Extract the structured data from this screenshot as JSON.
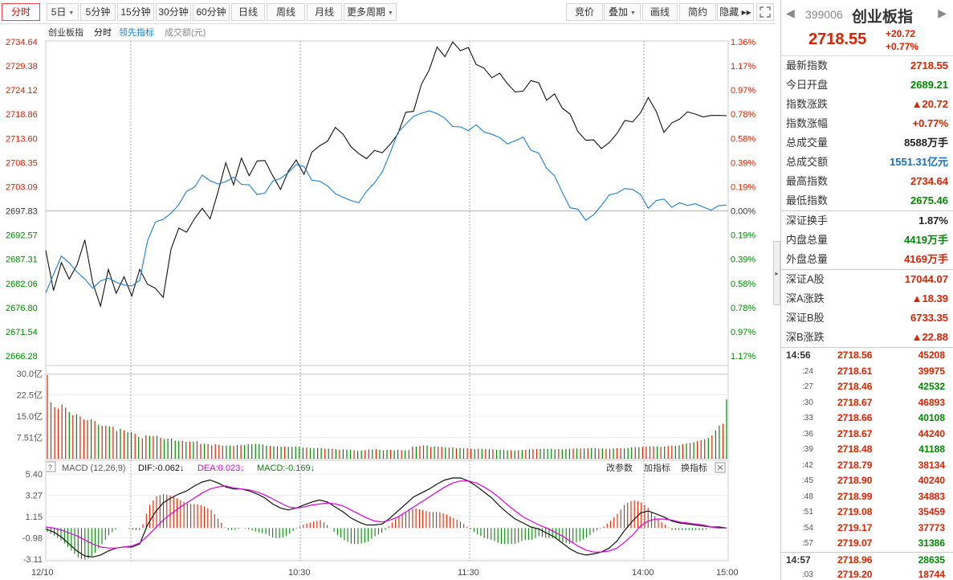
{
  "toolbar": {
    "left": [
      {
        "label": "分时",
        "active": true
      },
      {
        "label": "5日",
        "dropdown": true
      },
      {
        "label": "5分钟"
      },
      {
        "label": "15分钟"
      },
      {
        "label": "30分钟"
      },
      {
        "label": "60分钟"
      },
      {
        "label": "日线"
      },
      {
        "label": "周线"
      },
      {
        "label": "月线"
      },
      {
        "label": "更多周期",
        "dropdown": true
      }
    ],
    "right": [
      {
        "label": "竞价"
      },
      {
        "label": "叠加",
        "dropdown": true
      },
      {
        "label": "画线"
      },
      {
        "label": "简约"
      },
      {
        "label": "隐藏 ▸▸"
      }
    ],
    "fullscreen_icon": "fullscreen-icon"
  },
  "chart_legend": {
    "name": "创业板指",
    "mode": "分时",
    "leading_label": "领先指标",
    "volume_label": "成交额(元)"
  },
  "macd_legend": {
    "title": "MACD (12,26,9)",
    "dif": "DIF:-0.062↓",
    "dea": "DEA:0.023↓",
    "macd": "MACD:-0.169↓",
    "actions": [
      "改参数",
      "加指标",
      "换指标"
    ]
  },
  "colors": {
    "up": "#dd2200",
    "down": "#008800",
    "price_line": "#111111",
    "leading_line": "#1a7fd0",
    "dif_line": "#111111",
    "dea_line": "#dd00dd",
    "grid": "#dddddd"
  },
  "right_panel": {
    "code": "399006",
    "name": "创业板指",
    "price": "2718.55",
    "change": "+20.72",
    "change_pct": "+0.77%",
    "stats": [
      {
        "label": "最新指数",
        "value": "2718.55",
        "color": "red"
      },
      {
        "label": "今日开盘",
        "value": "2689.21",
        "color": "green"
      },
      {
        "label": "指数涨跌",
        "value": "▲20.72",
        "color": "red"
      },
      {
        "label": "指数涨幅",
        "value": "+0.77%",
        "color": "red"
      },
      {
        "label": "总成交量",
        "value": "8588万手",
        "color": "dark"
      },
      {
        "label": "总成交额",
        "value": "1551.31亿元",
        "color": "blue"
      },
      {
        "label": "最高指数",
        "value": "2734.64",
        "color": "red"
      },
      {
        "label": "最低指数",
        "value": "2675.46",
        "color": "green"
      }
    ],
    "stats2": [
      {
        "label": "深证换手",
        "value": "1.87%",
        "color": "dark"
      },
      {
        "label": "内盘总量",
        "value": "4419万手",
        "color": "green"
      },
      {
        "label": "外盘总量",
        "value": "4169万手",
        "color": "red"
      }
    ],
    "stats3": [
      {
        "label": "深证A股",
        "value": "17044.07",
        "color": "red"
      },
      {
        "label": "深A涨跌",
        "value": "▲18.39",
        "color": "red"
      },
      {
        "label": "深证B股",
        "value": "6733.35",
        "color": "red"
      },
      {
        "label": "深B涨跌",
        "value": "▲22.88",
        "color": "red"
      }
    ],
    "ticks": [
      {
        "time": "14:56",
        "sub": false,
        "price": "2718.56",
        "vol": "45208",
        "dir": "red"
      },
      {
        "time": ":24",
        "sub": true,
        "price": "2718.61",
        "vol": "39975",
        "dir": "red"
      },
      {
        "time": ":27",
        "sub": true,
        "price": "2718.46",
        "vol": "42532",
        "dir": "green"
      },
      {
        "time": ":30",
        "sub": true,
        "price": "2718.67",
        "vol": "46893",
        "dir": "red"
      },
      {
        "time": ":33",
        "sub": true,
        "price": "2718.66",
        "vol": "40108",
        "dir": "green"
      },
      {
        "time": ":36",
        "sub": true,
        "price": "2718.67",
        "vol": "44240",
        "dir": "red"
      },
      {
        "time": ":39",
        "sub": true,
        "price": "2718.48",
        "vol": "41188",
        "dir": "green"
      },
      {
        "time": ":42",
        "sub": true,
        "price": "2718.79",
        "vol": "38134",
        "dir": "red"
      },
      {
        "time": ":45",
        "sub": true,
        "price": "2718.90",
        "vol": "40240",
        "dir": "red"
      },
      {
        "time": ":48",
        "sub": true,
        "price": "2718.99",
        "vol": "34883",
        "dir": "red"
      },
      {
        "time": ":51",
        "sub": true,
        "price": "2719.08",
        "vol": "35459",
        "dir": "red"
      },
      {
        "time": ":54",
        "sub": true,
        "price": "2719.17",
        "vol": "37773",
        "dir": "red"
      },
      {
        "time": ":57",
        "sub": true,
        "price": "2719.07",
        "vol": "31386",
        "dir": "green"
      },
      {
        "time": "14:57",
        "sub": false,
        "price": "2718.96",
        "vol": "28635",
        "dir": "green"
      },
      {
        "time": ":03",
        "sub": true,
        "price": "2719.20",
        "vol": "18744",
        "dir": "red"
      }
    ]
  },
  "chart_data": [
    {
      "type": "line",
      "title": "创业板指 分时",
      "prev_close": 2697.83,
      "y_ticks": [
        "2734.64",
        "2729.38",
        "2724.12",
        "2718.86",
        "2713.60",
        "2708.35",
        "2703.09",
        "2697.83",
        "2692.57",
        "2687.31",
        "2682.06",
        "2676.80",
        "2671.54",
        "2666.28"
      ],
      "pct_ticks": [
        "1.36%",
        "1.17%",
        "0.97%",
        "0.78%",
        "0.58%",
        "0.39%",
        "0.19%",
        "0.00%",
        "0.19%",
        "0.39%",
        "0.58%",
        "0.78%",
        "0.97%",
        "1.17%"
      ],
      "ylim": [
        2666.28,
        2734.64
      ],
      "x_labels": [
        "12/10",
        "10:30",
        "11:30",
        "14:00",
        "15:00"
      ],
      "series": [
        {
          "name": "创业板指",
          "values": [
            2689.2,
            2680.5,
            2686.6,
            2683.0,
            2686.1,
            2691.5,
            2682.2,
            2677.1,
            2685.1,
            2679.9,
            2683.5,
            2679.3,
            2685.1,
            2681.9,
            2681.0,
            2679.0,
            2689.5,
            2694.1,
            2693.2,
            2696.1,
            2698.4,
            2696.1,
            2701.9,
            2708.3,
            2703.5,
            2709.3,
            2705.5,
            2708.7,
            2708.8,
            2705.5,
            2702.5,
            2706.5,
            2708.9,
            2705.8,
            2710.6,
            2712.0,
            2713.0,
            2716.0,
            2714.5,
            2711.8,
            2710.3,
            2709.2,
            2711.0,
            2710.5,
            2712.3,
            2714.6,
            2719.3,
            2719.5,
            2725.4,
            2728.5,
            2733.5,
            2731.4,
            2734.6,
            2732.7,
            2733.4,
            2729.7,
            2728.9,
            2726.8,
            2727.8,
            2725.5,
            2723.7,
            2723.9,
            2726.2,
            2725.7,
            2721.9,
            2723.3,
            2720.2,
            2718.9,
            2715.1,
            2713.2,
            2713.3,
            2711.4,
            2712.7,
            2714.7,
            2717.5,
            2717.2,
            2719.2,
            2722.5,
            2719.5,
            2714.9,
            2717.0,
            2717.8,
            2719.4,
            2718.9,
            2718.3,
            2718.6,
            2718.6,
            2718.55
          ]
        },
        {
          "name": "领先指标",
          "values": [
            2680.0,
            2684.0,
            2688.0,
            2686.5,
            2684.5,
            2683.0,
            2681.0,
            2682.6,
            2683.2,
            2682.3,
            2681.7,
            2681.5,
            2682.7,
            2691.3,
            2695.4,
            2696.0,
            2697.3,
            2699.2,
            2702.1,
            2703.0,
            2705.6,
            2704.4,
            2703.7,
            2704.2,
            2705.2,
            2703.6,
            2703.5,
            2701.4,
            2701.7,
            2704.3,
            2704.9,
            2706.2,
            2707.9,
            2707.5,
            2704.5,
            2704.3,
            2703.3,
            2701.6,
            2700.8,
            2700.1,
            2699.6,
            2702.1,
            2703.9,
            2706.3,
            2710.4,
            2714.9,
            2716.7,
            2718.4,
            2719.1,
            2719.6,
            2719.0,
            2718.0,
            2716.2,
            2716.1,
            2715.3,
            2716.6,
            2715.0,
            2714.5,
            2713.8,
            2712.4,
            2713.1,
            2713.9,
            2711.0,
            2710.4,
            2707.1,
            2705.5,
            2701.9,
            2698.5,
            2698.2,
            2695.8,
            2697.0,
            2699.0,
            2701.3,
            2701.7,
            2702.7,
            2702.5,
            2701.4,
            2698.4,
            2700.1,
            2700.4,
            2698.6,
            2699.6,
            2699.0,
            2699.4,
            2698.7,
            2698.0,
            2699.0,
            2699.1
          ]
        }
      ]
    },
    {
      "type": "bar",
      "title": "成交额(元)",
      "y_ticks": [
        "30.0亿",
        "22.5亿",
        "15.0亿",
        "7.51亿"
      ],
      "ylim": [
        0,
        30.0
      ],
      "unit": "亿",
      "volumes": [
        29.5,
        19.8,
        18.1,
        17.6,
        19.1,
        18.0,
        16.4,
        15.3,
        15.7,
        14.9,
        13.8,
        13.6,
        13.9,
        13.3,
        12.0,
        11.6,
        11.6,
        11.4,
        11.3,
        9.8,
        10.5,
        10.0,
        9.3,
        9.3,
        8.8,
        7.7,
        7.2,
        8.2,
        8.1,
        8.0,
        8.1,
        7.4,
        6.9,
        7.1,
        7.1,
        6.4,
        6.2,
        6.3,
        5.9,
        6.0,
        6.0,
        6.2,
        5.2,
        5.3,
        5.2,
        4.7,
        5.1,
        4.9,
        4.6,
        4.6,
        4.6,
        4.5,
        4.8,
        4.9,
        4.8,
        5.1,
        5.1,
        5.2,
        5.1,
        5.0,
        4.6,
        4.5,
        4.4,
        4.4,
        4.2,
        4.3,
        4.2,
        4.2,
        4.3,
        4.2,
        3.9,
        3.9,
        3.8,
        3.7,
        3.8,
        3.7,
        3.5,
        3.5,
        3.5,
        3.4,
        3.2,
        3.3,
        3.2,
        3.2,
        3.0,
        2.8,
        2.9,
        3.0,
        3.3,
        3.2,
        3.4,
        3.1,
        3.0,
        3.1,
        3.1,
        3.0,
        3.2,
        3.0,
        3.0,
        3.1,
        4.2,
        4.3,
        4.5,
        4.7,
        4.6,
        4.1,
        4.3,
        4.2,
        4.2,
        4.0,
        3.9,
        4.0,
        3.7,
        3.8,
        3.6,
        3.7,
        3.5,
        3.4,
        3.5,
        3.5,
        3.4,
        3.3,
        3.3,
        3.2,
        3.2,
        3.2,
        3.0,
        3.0,
        3.0,
        3.0,
        3.1,
        3.2,
        3.3,
        3.3,
        3.4,
        3.4,
        3.5,
        3.4,
        3.5,
        3.3,
        3.4,
        3.3,
        3.4,
        3.5,
        3.6,
        3.6,
        3.6,
        3.6,
        3.7,
        3.8,
        3.7,
        3.5,
        3.6,
        3.5,
        3.5,
        3.6,
        3.7,
        3.7,
        3.6,
        3.8,
        4.0,
        4.1,
        4.1,
        4.2,
        4.3,
        4.4,
        4.3,
        4.4,
        4.2,
        4.3,
        4.5,
        4.6,
        4.5,
        4.7,
        5.1,
        5.4,
        5.6,
        5.8,
        6.2,
        6.5,
        6.9,
        7.3,
        8.2,
        10.0,
        11.6,
        12.3,
        20.9
      ],
      "up_flags": "rrrrrrgrgrrrgrgrrgrrgrggrgrrgrgrgggggrgrgrrgrrrrrggrgrgggggggrgrgrgggggrggggrgrgrgggrggrrgrgrgrggrgrrgrrgrgrrgrgrggrrgrgrgrggggrgrgrgrrgggggrgggrgrgrggrgrrgrrgggrgrrrrgrgrrggrgrgrrrgrggrgg"
    },
    {
      "type": "line",
      "title": "MACD (12,26,9)",
      "y_ticks": [
        "5.40",
        "3.27",
        "1.15",
        "-0.98",
        "-3.11"
      ],
      "ylim": [
        -3.11,
        5.4
      ],
      "series": [
        {
          "name": "DIF",
          "values": [
            -0.1,
            -0.4,
            -0.9,
            -1.6,
            -2.3,
            -2.8,
            -2.9,
            -2.7,
            -2.3,
            -2.0,
            -1.9,
            -1.9,
            -1.6,
            0.3,
            1.6,
            2.5,
            3.0,
            3.4,
            3.7,
            4.2,
            4.6,
            4.8,
            4.5,
            4.1,
            3.9,
            3.9,
            3.7,
            3.4,
            3.0,
            2.4,
            2.0,
            1.8,
            2.0,
            2.3,
            2.6,
            2.8,
            2.6,
            2.1,
            1.6,
            1.0,
            0.6,
            0.3,
            0.3,
            0.4,
            1.0,
            1.7,
            2.4,
            3.1,
            3.5,
            3.9,
            4.4,
            4.8,
            5.0,
            5.0,
            4.7,
            4.2,
            3.6,
            3.0,
            2.2,
            1.5,
            0.9,
            0.5,
            0.1,
            -0.1,
            -0.5,
            -0.9,
            -1.5,
            -2.1,
            -2.5,
            -2.7,
            -2.6,
            -2.4,
            -2.0,
            -1.3,
            -0.2,
            0.7,
            1.5,
            1.7,
            1.4,
            1.1,
            0.7,
            0.5,
            0.4,
            0.3,
            0.2,
            0.1,
            0.1,
            0.0
          ]
        },
        {
          "name": "DEA",
          "values": [
            0.1,
            0.0,
            -0.2,
            -0.5,
            -0.8,
            -1.2,
            -1.6,
            -1.9,
            -2.0,
            -2.0,
            -1.9,
            -1.8,
            -1.5,
            -0.8,
            0.0,
            0.8,
            1.4,
            2.0,
            2.5,
            3.0,
            3.5,
            3.9,
            4.1,
            4.2,
            4.0,
            3.9,
            3.8,
            3.6,
            3.3,
            2.9,
            2.5,
            2.1,
            2.0,
            2.1,
            2.3,
            2.4,
            2.5,
            2.4,
            2.2,
            1.8,
            1.4,
            1.0,
            0.7,
            0.6,
            0.8,
            1.1,
            1.6,
            2.1,
            2.6,
            3.1,
            3.6,
            4.1,
            4.5,
            4.7,
            4.7,
            4.5,
            4.1,
            3.6,
            3.0,
            2.3,
            1.7,
            1.1,
            0.7,
            0.3,
            0.0,
            -0.4,
            -0.8,
            -1.3,
            -1.8,
            -2.2,
            -2.4,
            -2.4,
            -2.3,
            -2.0,
            -1.4,
            -0.7,
            0.2,
            0.7,
            0.9,
            0.9,
            0.8,
            0.6,
            0.5,
            0.4,
            0.3,
            0.1,
            0.0,
            0.0
          ]
        }
      ]
    }
  ],
  "time_axis": [
    "12/10",
    "10:30",
    "11:30",
    "14:00",
    "15:00"
  ]
}
